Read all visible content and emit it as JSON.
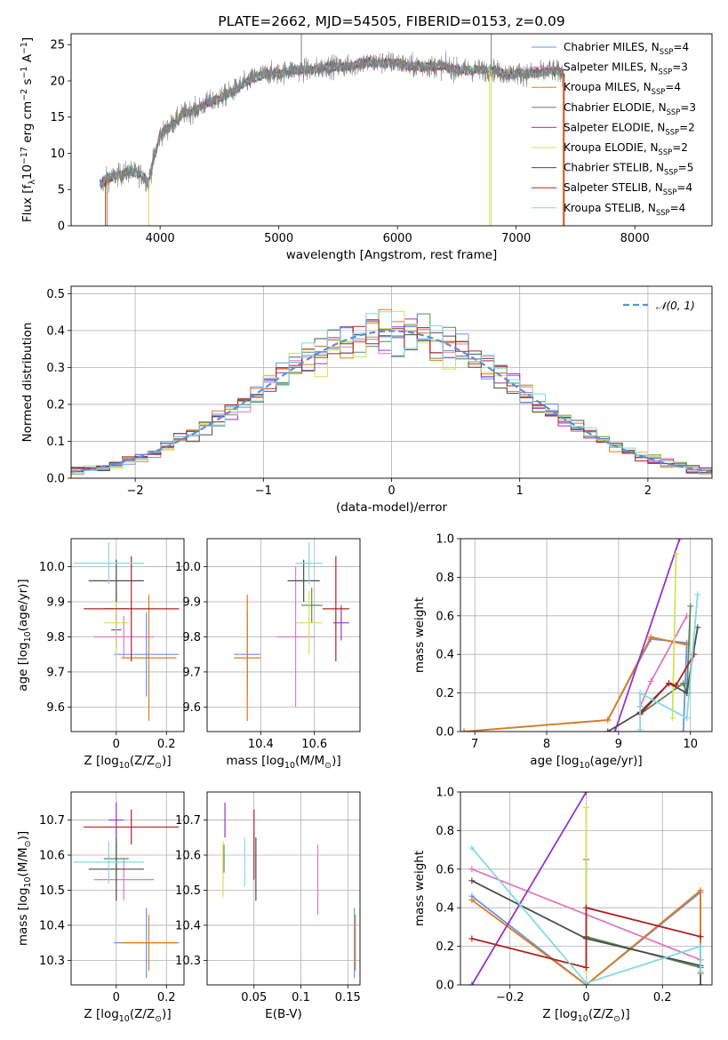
{
  "chart_data": [
    {
      "id": "spectrum",
      "type": "line",
      "title": "PLATE=2662, MJD=54505, FIBERID=0153, z=0.09",
      "xlabel": "wavelength [Angstrom, rest frame]",
      "ylabel": "Flux [f$_\\lambda$10$^{-17}$ erg cm$^{-2}$ s$^{-1}$ A$^{-1}$]",
      "xlim": [
        3250,
        8650
      ],
      "ylim": [
        0,
        26.5
      ],
      "xticks": [
        4000,
        5000,
        6000,
        7000,
        8000
      ],
      "yticks": [
        0,
        5,
        10,
        15,
        20,
        25
      ],
      "grid": false,
      "legend_position": "upper-right",
      "continuum": {
        "x": [
          3490,
          3550,
          3650,
          3750,
          3850,
          3900,
          3950,
          4000,
          4100,
          4200,
          4300,
          4400,
          4500,
          4600,
          4700,
          4800,
          4900,
          5000,
          5100,
          5200,
          5300,
          5400,
          5500,
          5600,
          5700,
          5800,
          5900,
          6000,
          6100,
          6200,
          6300,
          6400,
          6500,
          6600,
          6700,
          6800,
          6900,
          7000,
          7100,
          7200,
          7300,
          7400
        ],
        "y": [
          5.5,
          6.5,
          7.0,
          7.5,
          7.0,
          6.0,
          9.5,
          12.5,
          14.0,
          15.5,
          16.0,
          17.0,
          17.5,
          18.5,
          19.5,
          20.5,
          21.0,
          21.0,
          21.5,
          21.5,
          21.5,
          22.0,
          22.0,
          22.0,
          22.5,
          22.5,
          22.5,
          22.5,
          22.0,
          22.0,
          22.0,
          22.0,
          21.5,
          21.5,
          21.5,
          21.5,
          21.0,
          21.0,
          21.0,
          21.0,
          21.5,
          21.0
        ]
      },
      "series": [
        {
          "name": "Chabrier MILES, N$_{SSP}$=4",
          "color": "#6495ed"
        },
        {
          "name": "Salpeter MILES, N$_{SSP}$=3",
          "color": "#e377c2"
        },
        {
          "name": "Kroupa MILES, N$_{SSP}$=4",
          "color": "#e07b1a"
        },
        {
          "name": "Chabrier ELODIE, N$_{SSP}$=3",
          "color": "#5a8a5a"
        },
        {
          "name": "Salpeter ELODIE, N$_{SSP}$=2",
          "color": "#9932cc"
        },
        {
          "name": "Kroupa ELODIE, N$_{SSP}$=2",
          "color": "#d4e157"
        },
        {
          "name": "Chabrier STELIB, N$_{SSP}$=5",
          "color": "#4d4d4d"
        },
        {
          "name": "Salpeter STELIB, N$_{SSP}$=4",
          "color": "#b22222"
        },
        {
          "name": "Kroupa STELIB, N$_{SSP}$=4",
          "color": "#7fdbe0"
        }
      ]
    },
    {
      "id": "residuals",
      "type": "line",
      "xlabel": "(data-model)/error",
      "ylabel": "Normed distribution",
      "xlim": [
        -2.5,
        2.5
      ],
      "ylim": [
        0,
        0.52
      ],
      "xticks": [
        -2,
        -1,
        0,
        1,
        2
      ],
      "yticks": [
        0.0,
        0.1,
        0.2,
        0.3,
        0.4,
        0.5
      ],
      "grid": true,
      "legend_position": "upper-right",
      "reference": {
        "name": "$\\mathcal{N}(0, 1)$",
        "color": "#5b8fd6"
      }
    },
    {
      "id": "age-metallicity",
      "type": "scatter",
      "xlabel": "Z [log$_{10}$(Z/Z$_\\odot$)]",
      "ylabel": "age  [log$_{10}$($age/yr$)]",
      "xlim": [
        -0.18,
        0.27
      ],
      "ylim": [
        9.53,
        10.08
      ],
      "xticks": [
        0.0,
        0.2
      ],
      "yticks": [
        9.6,
        9.7,
        9.8,
        9.9,
        10.0
      ],
      "grid": true,
      "points": [
        {
          "color": "#6495ed",
          "x": 0.12,
          "y": 9.75,
          "xerr": 0.13,
          "yerr": 0.12
        },
        {
          "color": "#e377c2",
          "x": 0.03,
          "y": 9.8,
          "xerr": 0.12,
          "yerr": 0.06
        },
        {
          "color": "#e07b1a",
          "x": 0.13,
          "y": 9.74,
          "xerr": 0.11,
          "yerr": 0.18
        },
        {
          "color": "#5a8a5a",
          "x": 0.0,
          "y": 9.88,
          "xerr": 0.05,
          "yerr": 0.05
        },
        {
          "color": "#9932cc",
          "x": 0.0,
          "y": 9.82,
          "xerr": 0.02,
          "yerr": 0.05
        },
        {
          "color": "#d4e157",
          "x": 0.0,
          "y": 9.84,
          "xerr": 0.05,
          "yerr": 0.09
        },
        {
          "color": "#4d4d4d",
          "x": 0.0,
          "y": 9.96,
          "xerr": 0.11,
          "yerr": 0.06
        },
        {
          "color": "#b22222",
          "x": 0.06,
          "y": 9.88,
          "xerr": 0.19,
          "yerr": 0.15
        },
        {
          "color": "#7fdbe0",
          "x": -0.03,
          "y": 10.01,
          "xerr": 0.14,
          "yerr": 0.06
        }
      ]
    },
    {
      "id": "age-mass",
      "type": "scatter",
      "xlabel": "mass [log$_{10}$($M/M_\\odot$)]",
      "ylabel": "",
      "xlim": [
        10.2,
        10.77
      ],
      "ylim": [
        9.53,
        10.08
      ],
      "xticks": [
        10.4,
        10.6
      ],
      "yticks": [
        9.6,
        9.7,
        9.8,
        9.9,
        10.0
      ],
      "grid": true,
      "points": [
        {
          "color": "#6495ed",
          "x": 10.35,
          "y": 9.75,
          "xerr": 0.05,
          "yerr": 0.12
        },
        {
          "color": "#e377c2",
          "x": 10.53,
          "y": 9.8,
          "xerr": 0.07,
          "yerr": 0.2
        },
        {
          "color": "#e07b1a",
          "x": 10.35,
          "y": 9.74,
          "xerr": 0.05,
          "yerr": 0.18
        },
        {
          "color": "#5a8a5a",
          "x": 10.59,
          "y": 9.89,
          "xerr": 0.04,
          "yerr": 0.05
        },
        {
          "color": "#9932cc",
          "x": 10.7,
          "y": 9.84,
          "xerr": 0.03,
          "yerr": 0.05
        },
        {
          "color": "#d4e157",
          "x": 10.58,
          "y": 9.84,
          "xerr": 0.05,
          "yerr": 0.09
        },
        {
          "color": "#4d4d4d",
          "x": 10.56,
          "y": 9.96,
          "xerr": 0.06,
          "yerr": 0.06
        },
        {
          "color": "#b22222",
          "x": 10.68,
          "y": 9.88,
          "xerr": 0.05,
          "yerr": 0.15
        },
        {
          "color": "#7fdbe0",
          "x": 10.58,
          "y": 10.01,
          "xerr": 0.05,
          "yerr": 0.06
        }
      ]
    },
    {
      "id": "weight-age",
      "type": "line",
      "xlabel": "age  [log$_{10}$($age/yr$)]",
      "ylabel": "mass weight",
      "xlim": [
        6.8,
        10.3
      ],
      "ylim": [
        0,
        1.0
      ],
      "xticks": [
        7,
        8,
        9,
        10
      ],
      "yticks": [
        0.0,
        0.2,
        0.4,
        0.6,
        0.8,
        1.0
      ],
      "grid": true,
      "series": [
        {
          "color": "#6495ed",
          "x": [
            6.85,
            8.85,
            9.45,
            9.95,
            9.9
          ],
          "y": [
            0.0,
            0.06,
            0.48,
            0.46,
            0.0
          ]
        },
        {
          "color": "#e377c2",
          "x": [
            9.3,
            9.45,
            9.95
          ],
          "y": [
            0.13,
            0.26,
            0.6
          ]
        },
        {
          "color": "#e07b1a",
          "x": [
            6.85,
            8.85,
            9.45,
            9.95
          ],
          "y": [
            0.0,
            0.06,
            0.49,
            0.45
          ]
        },
        {
          "color": "#5a8a5a",
          "x": [
            9.3,
            9.9,
            9.95,
            10.0
          ],
          "y": [
            0.09,
            0.25,
            0.2,
            0.65
          ]
        },
        {
          "color": "#9932cc",
          "x": [
            8.95,
            9.85
          ],
          "y": [
            0.0,
            1.0
          ]
        },
        {
          "color": "#d4e157",
          "x": [
            9.75,
            9.8
          ],
          "y": [
            0.07,
            0.92
          ]
        },
        {
          "color": "#4d4d4d",
          "x": [
            8.85,
            9.3,
            9.7,
            9.95,
            10.1
          ],
          "y": [
            0.0,
            0.1,
            0.25,
            0.2,
            0.54
          ]
        },
        {
          "color": "#b22222",
          "x": [
            9.3,
            9.7,
            9.8,
            10.05
          ],
          "y": [
            0.09,
            0.25,
            0.24,
            0.4
          ]
        },
        {
          "color": "#7fdbe0",
          "x": [
            9.3,
            9.3,
            9.95,
            10.1
          ],
          "y": [
            0.01,
            0.2,
            0.07,
            0.71
          ]
        }
      ]
    },
    {
      "id": "mass-metallicity",
      "type": "scatter",
      "xlabel": "Z [log$_{10}$(Z/Z$_\\odot$)]",
      "ylabel": "mass [log$_{10}$($M/M_\\odot$)]",
      "xlim": [
        -0.18,
        0.27
      ],
      "ylim": [
        10.23,
        10.78
      ],
      "xticks": [
        0.0,
        0.2
      ],
      "yticks": [
        10.3,
        10.4,
        10.5,
        10.6,
        10.7
      ],
      "grid": true,
      "points": [
        {
          "color": "#6495ed",
          "x": 0.12,
          "y": 10.35,
          "xerr": 0.13,
          "yerr": 0.1
        },
        {
          "color": "#e377c2",
          "x": 0.03,
          "y": 10.53,
          "xerr": 0.12,
          "yerr": 0.06
        },
        {
          "color": "#e07b1a",
          "x": 0.13,
          "y": 10.35,
          "xerr": 0.11,
          "yerr": 0.08
        },
        {
          "color": "#5a8a5a",
          "x": 0.0,
          "y": 10.59,
          "xerr": 0.05,
          "yerr": 0.04
        },
        {
          "color": "#9932cc",
          "x": 0.0,
          "y": 10.7,
          "xerr": 0.03,
          "yerr": 0.05
        },
        {
          "color": "#d4e157",
          "x": 0.0,
          "y": 10.58,
          "xerr": 0.05,
          "yerr": 0.06
        },
        {
          "color": "#4d4d4d",
          "x": 0.0,
          "y": 10.56,
          "xerr": 0.11,
          "yerr": 0.09
        },
        {
          "color": "#b22222",
          "x": 0.06,
          "y": 10.68,
          "xerr": 0.19,
          "yerr": 0.05
        },
        {
          "color": "#7fdbe0",
          "x": -0.03,
          "y": 10.58,
          "xerr": 0.14,
          "yerr": 0.06
        }
      ]
    },
    {
      "id": "mass-ebv",
      "type": "scatter",
      "xlabel": "E(B-V)",
      "ylabel": "",
      "xlim": [
        0.0,
        0.163
      ],
      "ylim": [
        10.23,
        10.78
      ],
      "xticks": [
        0.05,
        0.1,
        0.15
      ],
      "yticks": [
        10.3,
        10.4,
        10.5,
        10.6,
        10.7
      ],
      "grid": true,
      "points": [
        {
          "color": "#6495ed",
          "x": 0.157,
          "y": 10.35,
          "xerr": 0.0,
          "yerr": 0.1
        },
        {
          "color": "#e377c2",
          "x": 0.118,
          "y": 10.53,
          "xerr": 0.0,
          "yerr": 0.1
        },
        {
          "color": "#e07b1a",
          "x": 0.158,
          "y": 10.35,
          "xerr": 0.0,
          "yerr": 0.08
        },
        {
          "color": "#5a8a5a",
          "x": 0.018,
          "y": 10.59,
          "xerr": 0.0,
          "yerr": 0.04
        },
        {
          "color": "#9932cc",
          "x": 0.019,
          "y": 10.7,
          "xerr": 0.0,
          "yerr": 0.05
        },
        {
          "color": "#d4e157",
          "x": 0.017,
          "y": 10.56,
          "xerr": 0.0,
          "yerr": 0.08
        },
        {
          "color": "#4d4d4d",
          "x": 0.052,
          "y": 10.56,
          "xerr": 0.0,
          "yerr": 0.09
        },
        {
          "color": "#b22222",
          "x": 0.05,
          "y": 10.63,
          "xerr": 0.0,
          "yerr": 0.1
        },
        {
          "color": "#7fdbe0",
          "x": 0.04,
          "y": 10.58,
          "xerr": 0.0,
          "yerr": 0.07
        }
      ]
    },
    {
      "id": "weight-metallicity",
      "type": "line",
      "xlabel": "Z [log$_{10}$(Z/Z$_\\odot$)]",
      "ylabel": "mass weight",
      "xlim": [
        -0.33,
        0.33
      ],
      "ylim": [
        0,
        1.0
      ],
      "xticks": [
        -0.2,
        0.0,
        0.2
      ],
      "yticks": [
        0.0,
        0.2,
        0.4,
        0.6,
        0.8,
        1.0
      ],
      "grid": true,
      "series": [
        {
          "color": "#6495ed",
          "x": [
            -0.3,
            0.0,
            0.3,
            0.3
          ],
          "y": [
            0.46,
            0.0,
            0.48,
            0.06
          ]
        },
        {
          "color": "#e377c2",
          "x": [
            -0.3,
            0.3
          ],
          "y": [
            0.6,
            0.13
          ]
        },
        {
          "color": "#e07b1a",
          "x": [
            -0.3,
            0.0,
            0.3,
            0.3
          ],
          "y": [
            0.44,
            0.0,
            0.49,
            0.06
          ]
        },
        {
          "color": "#5a8a5a",
          "x": [
            0.0,
            0.0,
            0.3,
            0.3
          ],
          "y": [
            0.65,
            0.25,
            0.09,
            0.2
          ]
        },
        {
          "color": "#9932cc",
          "x": [
            -0.3,
            0.0
          ],
          "y": [
            0.0,
            1.0
          ]
        },
        {
          "color": "#d4e157",
          "x": [
            0.0,
            0.0
          ],
          "y": [
            0.07,
            0.92
          ]
        },
        {
          "color": "#4d4d4d",
          "x": [
            -0.3,
            0.0,
            0.3,
            0.3
          ],
          "y": [
            0.54,
            0.24,
            0.1,
            0.0
          ]
        },
        {
          "color": "#b22222",
          "x": [
            -0.3,
            0.0,
            0.0,
            0.3
          ],
          "y": [
            0.24,
            0.09,
            0.4,
            0.25
          ]
        },
        {
          "color": "#7fdbe0",
          "x": [
            -0.3,
            0.0,
            0.3,
            0.3
          ],
          "y": [
            0.71,
            0.01,
            0.2,
            0.07
          ]
        }
      ]
    }
  ]
}
